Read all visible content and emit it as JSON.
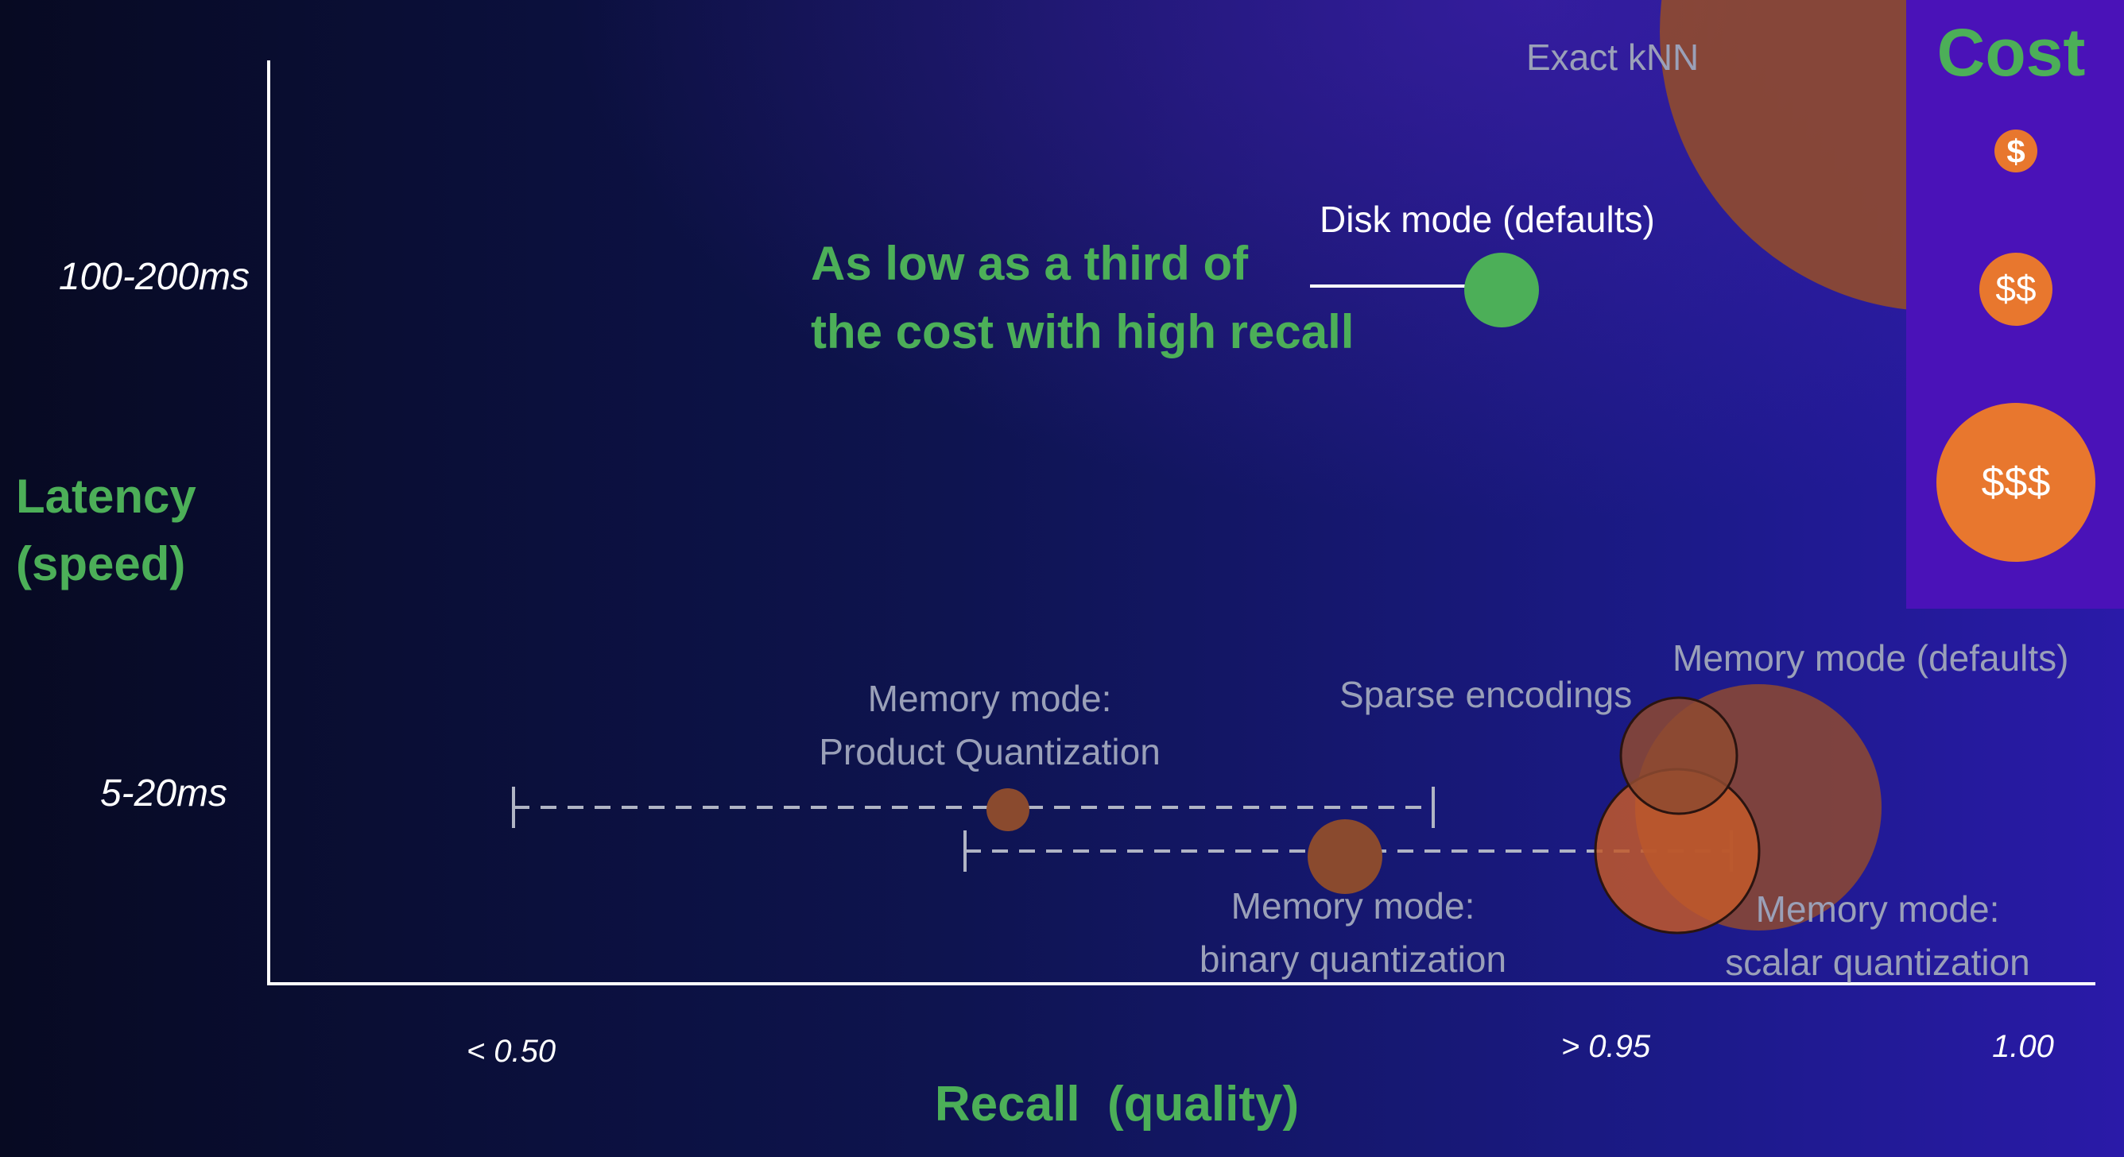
{
  "chart_data": {
    "type": "scatter",
    "title": "",
    "xlabel": "Recall  (quality)",
    "ylabel_lines": [
      "Latency",
      "(speed)"
    ],
    "x_ticks": [
      "< 0.50",
      "> 0.95",
      "1.00"
    ],
    "y_ticks": [
      "100-200ms",
      "5-20ms"
    ],
    "annotation": [
      "As low as a third of",
      "the cost with high recall"
    ],
    "legend": {
      "title": "Cost",
      "items": [
        "$",
        "$$",
        "$$$"
      ]
    },
    "points": [
      {
        "name": "Exact kNN",
        "recall": "1.00",
        "latency": "> 100-200ms",
        "cost": "$$$"
      },
      {
        "name": "Disk mode (defaults)",
        "recall": "~0.95",
        "latency": "100-200ms",
        "cost": "$"
      },
      {
        "name": "Memory mode: Product Quantization",
        "recall": "< 0.50 to ~0.94",
        "latency": "5-20ms",
        "cost": "$"
      },
      {
        "name": "Memory mode: binary quantization",
        "recall": "~0.75 to ~0.97",
        "latency": "5-20ms",
        "cost": "$"
      },
      {
        "name": "Sparse encodings",
        "recall": "> 0.95",
        "latency": "5-20ms",
        "cost": "$$"
      },
      {
        "name": "Memory mode (defaults)",
        "recall": "~0.98",
        "latency": "5-20ms",
        "cost": "$$$"
      },
      {
        "name": "Memory mode: scalar quantization",
        "recall": "> 0.95",
        "latency": "5-20ms",
        "cost": "$$"
      }
    ],
    "label_lines": {
      "exact": [
        "Exact kNN"
      ],
      "disk": [
        "Disk mode (defaults)"
      ],
      "pq": [
        "Memory mode:",
        "Product Quantization"
      ],
      "sparse": [
        "Sparse encodings"
      ],
      "memdef": [
        "Memory mode (defaults)"
      ],
      "binary": [
        "Memory mode:",
        "binary quantization"
      ],
      "scalar": [
        "Memory mode:",
        "scalar quantization"
      ]
    },
    "colors": {
      "green": "#4caf58",
      "orange": "#e8772e",
      "bubble_brown": "#8a4a2e",
      "muted_text": "#9aa0b8",
      "legend_panel": "#4a12b8"
    }
  }
}
